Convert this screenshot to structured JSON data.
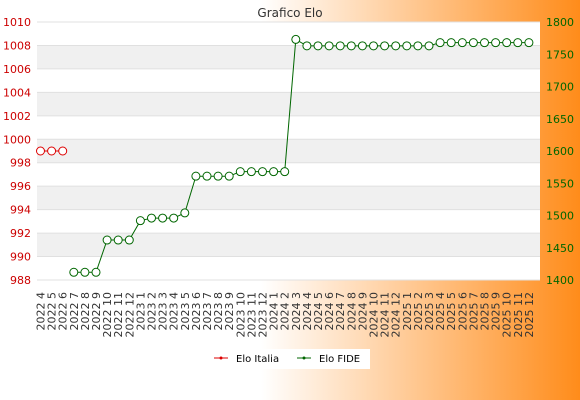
{
  "chart_data": {
    "type": "line",
    "title": "Grafico Elo",
    "x": [
      "2022 4",
      "2022 5",
      "2022 6",
      "2022 7",
      "2022 8",
      "2022 9",
      "2022 10",
      "2022 11",
      "2022 12",
      "2023 1",
      "2023 2",
      "2023 3",
      "2023 4",
      "2023 5",
      "2023 6",
      "2023 7",
      "2023 8",
      "2023 9",
      "2023 10",
      "2023 11",
      "2023 12",
      "2024 1",
      "2024 2",
      "2024 3",
      "2024 4",
      "2024 5",
      "2024 6",
      "2024 7",
      "2024 8",
      "2024 9",
      "2024 10",
      "2024 11",
      "2024 12",
      "2025 1",
      "2025 2",
      "2025 3",
      "2025 4",
      "2025 5",
      "2025 6",
      "2025 7",
      "2025 8",
      "2025 9",
      "2025 10",
      "2025 11",
      "2025 12"
    ],
    "series": [
      {
        "name": "Elo Italia",
        "axis": "left",
        "color": "#dd0000",
        "values": [
          999,
          999,
          999,
          null,
          null,
          null,
          null,
          null,
          null,
          null,
          null,
          null,
          null,
          null,
          null,
          null,
          null,
          null,
          null,
          null,
          null,
          null,
          null,
          null,
          null,
          null,
          null,
          null,
          null,
          null,
          null,
          null,
          null,
          null,
          null,
          null,
          null,
          null,
          null,
          null,
          null,
          null,
          null,
          null,
          null
        ]
      },
      {
        "name": "Elo FIDE",
        "axis": "right",
        "color": "#006600",
        "values": [
          null,
          null,
          null,
          1412,
          1412,
          1412,
          1462,
          1462,
          1462,
          1492,
          1496,
          1496,
          1496,
          1504,
          1561,
          1561,
          1561,
          1561,
          1568,
          1568,
          1568,
          1568,
          1568,
          1773,
          1763,
          1763,
          1763,
          1763,
          1763,
          1763,
          1763,
          1763,
          1763,
          1763,
          1763,
          1763,
          1768,
          1768,
          1768,
          1768,
          1768,
          1768,
          1768,
          1768,
          1768
        ]
      }
    ],
    "y_left": {
      "min": 988,
      "max": 1010,
      "ticks": [
        988,
        990,
        992,
        994,
        996,
        998,
        1000,
        1002,
        1004,
        1006,
        1008,
        1010
      ],
      "color": "#cc0000"
    },
    "y_right": {
      "min": 1400,
      "max": 1800,
      "ticks": [
        1400,
        1450,
        1500,
        1550,
        1600,
        1650,
        1700,
        1750,
        1800
      ],
      "color": "#006600"
    },
    "grid": true,
    "legend_position": "bottom-center",
    "colors": {
      "bg_left": "#ffffff",
      "bg_right": "#ff8c1a",
      "band": "#f0f0f0"
    }
  }
}
